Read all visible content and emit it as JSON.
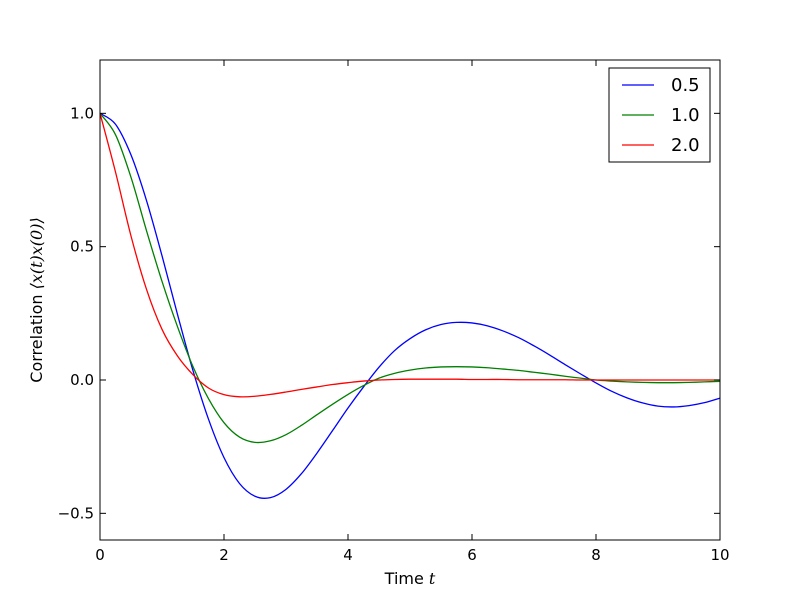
{
  "chart_data": {
    "type": "line",
    "title": "",
    "xlabel": {
      "text": "Time ",
      "math": "t"
    },
    "ylabel": {
      "text": "Correlation ",
      "math": "⟨x(t)x(0)⟩"
    },
    "xlim": [
      0,
      10
    ],
    "ylim": [
      -0.6,
      1.2
    ],
    "x_ticks": [
      {
        "value": 0,
        "label": "0"
      },
      {
        "value": 2,
        "label": "2"
      },
      {
        "value": 4,
        "label": "4"
      },
      {
        "value": 6,
        "label": "6"
      },
      {
        "value": 8,
        "label": "8"
      },
      {
        "value": 10,
        "label": "10"
      }
    ],
    "y_ticks": [
      {
        "value": -0.5,
        "label": "−0.5"
      },
      {
        "value": 0.0,
        "label": "0.0"
      },
      {
        "value": 0.5,
        "label": "0.5"
      },
      {
        "value": 1.0,
        "label": "1.0"
      }
    ],
    "grid": false,
    "legend_position": "top-right",
    "x": [
      0.0,
      0.25,
      0.5,
      0.75,
      1.0,
      1.25,
      1.5,
      1.75,
      2.0,
      2.25,
      2.5,
      2.75,
      3.0,
      3.25,
      3.5,
      3.75,
      4.0,
      4.25,
      4.5,
      4.75,
      5.0,
      5.25,
      5.5,
      5.75,
      6.0,
      6.25,
      6.5,
      6.75,
      7.0,
      7.25,
      7.5,
      7.75,
      8.0,
      8.25,
      8.5,
      8.75,
      9.0,
      9.25,
      9.5,
      9.75,
      10.0
    ],
    "series": [
      {
        "name": "0.5",
        "color": "#0000ff",
        "values": [
          1.0,
          0.959,
          0.844,
          0.673,
          0.466,
          0.246,
          0.035,
          -0.147,
          -0.291,
          -0.388,
          -0.436,
          -0.441,
          -0.41,
          -0.351,
          -0.274,
          -0.19,
          -0.105,
          -0.026,
          0.048,
          0.11,
          0.155,
          0.188,
          0.208,
          0.216,
          0.214,
          0.203,
          0.184,
          0.159,
          0.128,
          0.094,
          0.058,
          0.023,
          -0.011,
          -0.042,
          -0.067,
          -0.086,
          -0.098,
          -0.101,
          -0.096,
          -0.085,
          -0.068
        ]
      },
      {
        "name": "1.0",
        "color": "#008000",
        "values": [
          1.0,
          0.92,
          0.76,
          0.56,
          0.37,
          0.2,
          0.05,
          -0.07,
          -0.16,
          -0.214,
          -0.234,
          -0.228,
          -0.205,
          -0.17,
          -0.13,
          -0.091,
          -0.054,
          -0.021,
          0.007,
          0.025,
          0.037,
          0.045,
          0.049,
          0.05,
          0.049,
          0.046,
          0.041,
          0.036,
          0.029,
          0.022,
          0.014,
          0.007,
          0.0,
          -0.004,
          -0.007,
          -0.009,
          -0.01,
          -0.01,
          -0.009,
          -0.007,
          -0.005
        ]
      },
      {
        "name": "2.0",
        "color": "#ff0000",
        "values": [
          1.0,
          0.78,
          0.54,
          0.34,
          0.19,
          0.09,
          0.02,
          -0.03,
          -0.055,
          -0.063,
          -0.061,
          -0.054,
          -0.045,
          -0.035,
          -0.026,
          -0.017,
          -0.01,
          -0.004,
          0.0,
          0.002,
          0.003,
          0.003,
          0.003,
          0.003,
          0.002,
          0.002,
          0.002,
          0.001,
          0.001,
          0.001,
          0.001,
          0.0,
          0.0,
          0.0,
          0.0,
          0.0,
          0.0,
          0.0,
          0.0,
          0.0,
          0.0
        ]
      }
    ]
  }
}
